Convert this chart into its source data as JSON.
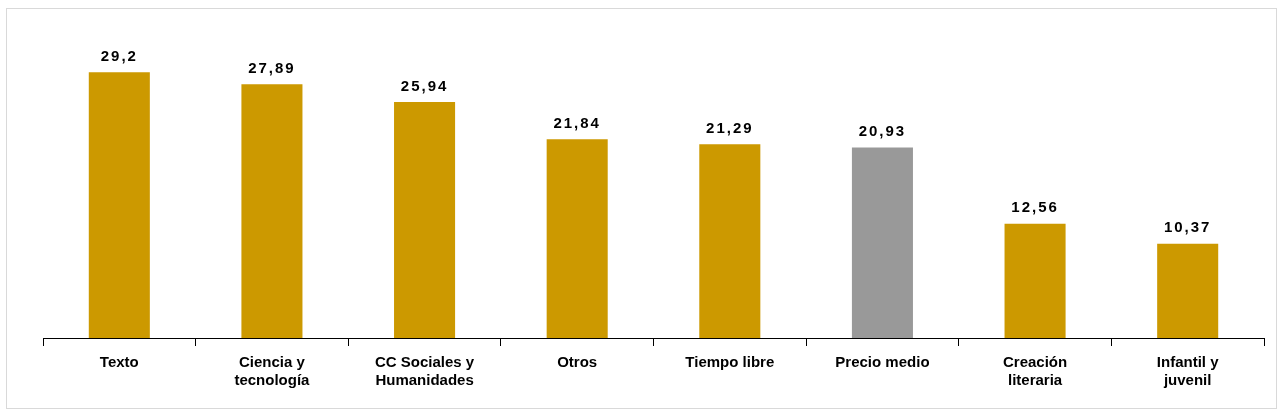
{
  "chart_data": {
    "type": "bar",
    "categories": [
      "Texto",
      "Ciencia y tecnología",
      "CC Sociales y Humanidades",
      "Otros",
      "Tiempo libre",
      "Precio medio",
      "Creación literaria",
      "Infantil y juvenil"
    ],
    "values": [
      29.2,
      27.89,
      25.94,
      21.84,
      21.29,
      20.93,
      12.56,
      10.37
    ],
    "colors": [
      "#cc9900",
      "#cc9900",
      "#cc9900",
      "#cc9900",
      "#cc9900",
      "#999999",
      "#cc9900",
      "#cc9900"
    ],
    "value_labels": [
      "29,2",
      "27,89",
      "25,94",
      "21,84",
      "21,29",
      "20,93",
      "12,56",
      "10,37"
    ],
    "tick_labels": "x",
    "grid": false,
    "legend": false
  }
}
